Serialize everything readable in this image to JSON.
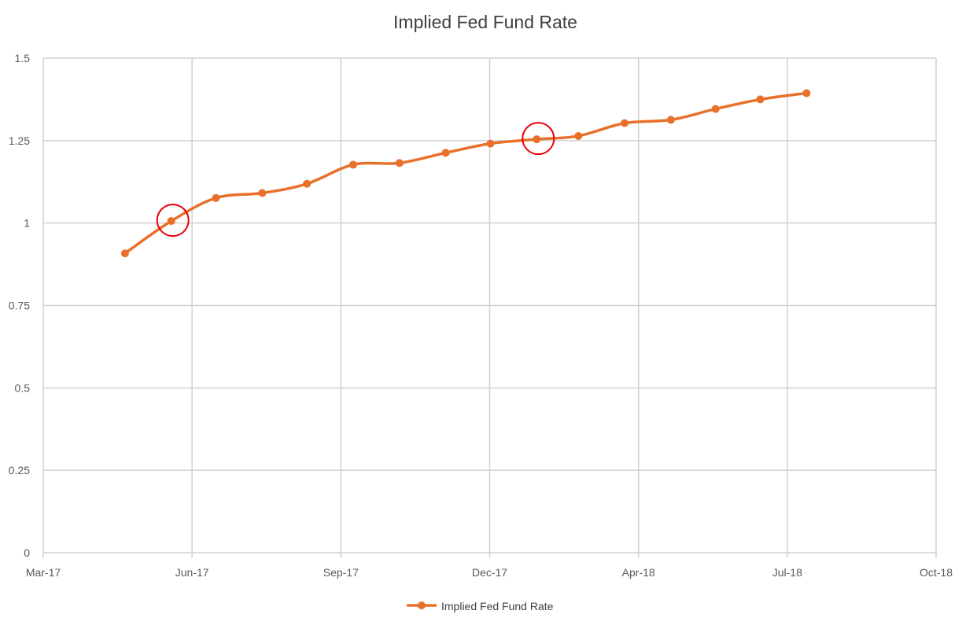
{
  "chart_data": {
    "type": "line",
    "title": "Implied Fed Fund Rate",
    "xlabel": "",
    "ylabel": "",
    "x_ticks": [
      "Mar-17",
      "Jun-17",
      "Sep-17",
      "Dec-17",
      "Apr-18",
      "Jul-18",
      "Oct-18"
    ],
    "y_ticks": [
      "0",
      "0.25",
      "0.5",
      "0.75",
      "1",
      "1.25",
      "1.5"
    ],
    "xlim": [
      "2017-03-01",
      "2018-10-01"
    ],
    "ylim": [
      0,
      1.5
    ],
    "grid": true,
    "legend_position": "bottom",
    "series": [
      {
        "name": "Implied Fed Fund Rate",
        "color": "#E8702A",
        "smooth": true,
        "markers": true,
        "x": [
          "2017-04-23",
          "2017-05-23",
          "2017-06-21",
          "2017-07-21",
          "2017-08-19",
          "2017-09-18",
          "2017-10-18",
          "2017-11-17",
          "2017-12-16",
          "2018-01-15",
          "2018-02-11",
          "2018-03-13",
          "2018-04-12",
          "2018-05-11",
          "2018-06-09",
          "2018-07-09"
        ],
        "values": [
          0.908,
          1.006,
          1.076,
          1.091,
          1.119,
          1.177,
          1.182,
          1.213,
          1.241,
          1.254,
          1.264,
          1.303,
          1.313,
          1.346,
          1.375,
          1.394
        ]
      }
    ],
    "annotations": [
      {
        "type": "red-circle",
        "point_index": 1,
        "color": "#E8000B"
      },
      {
        "type": "red-circle",
        "point_index": 9,
        "color": "#E8000B"
      }
    ]
  }
}
